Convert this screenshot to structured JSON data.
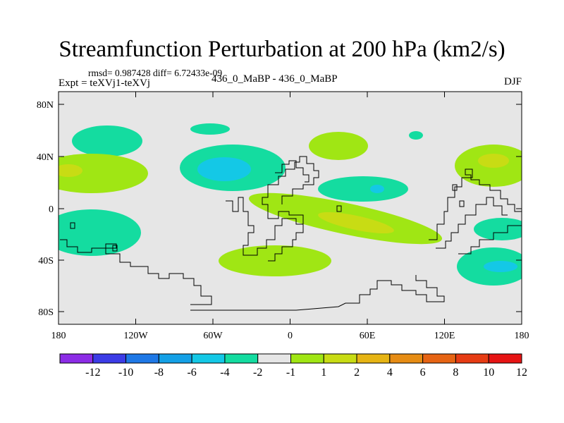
{
  "plot": {
    "title": "Streamfunction Perturbation at 200 hPa (km2/s)",
    "stats": "rmsd= 0.987428 diff= 6.72433e-09",
    "experiment": "Expt = teXVj1-teXVj",
    "case_label": "436_0_MaBP - 436_0_MaBP",
    "season": "DJF",
    "lat_labels": [
      "80N",
      "40N",
      "0",
      "40S",
      "80S"
    ],
    "lon_labels": [
      "180",
      "120W",
      "60W",
      "0",
      "60E",
      "120E",
      "180"
    ]
  },
  "colorbar": {
    "colors": [
      "#8c2ce6",
      "#3c3ce6",
      "#1e78e6",
      "#14a0e6",
      "#14c8e6",
      "#14dca0",
      "#e6e6e6",
      "#a0e614",
      "#c8dc14",
      "#e6b414",
      "#e68c14",
      "#e66414",
      "#e63c14",
      "#e61414"
    ],
    "labels": [
      "-12",
      "-10",
      "-8",
      "-6",
      "-4",
      "-2",
      "-1",
      "1",
      "2",
      "4",
      "6",
      "8",
      "10",
      "12"
    ]
  },
  "colors": {
    "background": "#e6e6e6",
    "neg_light": "#14dca0",
    "neg_mid": "#14c8e6",
    "pos_light": "#a0e614",
    "pos_mid": "#c8dc14"
  }
}
